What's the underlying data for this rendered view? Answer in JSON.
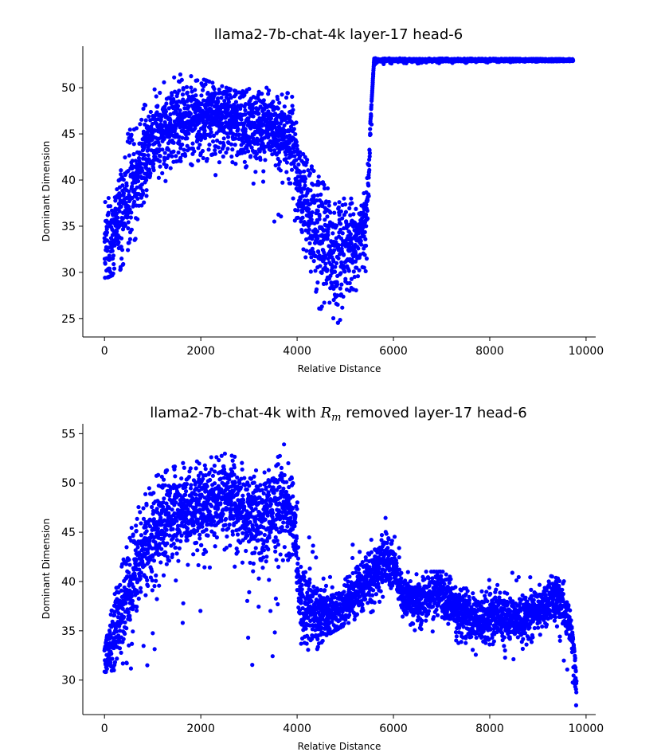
{
  "colors": {
    "points": "#0000ff",
    "axis": "#000000"
  },
  "chart_data": [
    {
      "type": "scatter",
      "title": "llama2-7b-chat-4k layer-17 head-6",
      "title_parts": [
        "llama2-7b-chat-4k layer-17 head-6"
      ],
      "xlabel": "Relative Distance",
      "ylabel": "Dominant Dimension",
      "xlim": [
        -450,
        10200
      ],
      "ylim": [
        23,
        54.5
      ],
      "xticks": [
        0,
        2000,
        4000,
        6000,
        8000,
        10000
      ],
      "yticks": [
        25,
        30,
        35,
        40,
        45,
        50
      ],
      "xmax_point": 9730,
      "profile": [
        [
          0,
          33
        ],
        [
          100,
          32.5
        ],
        [
          250,
          35
        ],
        [
          400,
          37
        ],
        [
          600,
          40
        ],
        [
          800,
          42
        ],
        [
          1000,
          44
        ],
        [
          1300,
          45.5
        ],
        [
          1600,
          46.5
        ],
        [
          2000,
          47
        ],
        [
          2400,
          47
        ],
        [
          2800,
          46.5
        ],
        [
          3200,
          45.5
        ],
        [
          3600,
          45.5
        ],
        [
          3900,
          44.5
        ],
        [
          4000,
          40
        ],
        [
          4200,
          37
        ],
        [
          4400,
          35
        ],
        [
          4600,
          33
        ],
        [
          4800,
          31
        ],
        [
          5000,
          33
        ],
        [
          5300,
          34
        ],
        [
          5450,
          36
        ],
        [
          5500,
          42
        ],
        [
          5550,
          50
        ],
        [
          5600,
          53
        ],
        [
          9730,
          53
        ]
      ],
      "noise": [
        [
          0,
          3
        ],
        [
          400,
          4
        ],
        [
          1000,
          3
        ],
        [
          2000,
          2.5
        ],
        [
          3200,
          2.5
        ],
        [
          3900,
          3
        ],
        [
          4300,
          4
        ],
        [
          4900,
          4
        ],
        [
          5450,
          2
        ],
        [
          5550,
          0.6
        ],
        [
          5650,
          0.1
        ],
        [
          9730,
          0.1
        ]
      ],
      "range": [
        [
          0,
          29.3,
          37.5
        ],
        [
          300,
          30,
          40
        ],
        [
          600,
          33,
          48
        ],
        [
          1000,
          39,
          50
        ],
        [
          1600,
          41,
          51.5
        ],
        [
          2000,
          39.5,
          51
        ],
        [
          2800,
          42,
          49.5
        ],
        [
          3500,
          35.3,
          50.8
        ],
        [
          3900,
          37,
          49
        ],
        [
          4100,
          31,
          43
        ],
        [
          4500,
          25.5,
          40
        ],
        [
          4800,
          24.2,
          38
        ],
        [
          5200,
          27,
          38
        ],
        [
          5450,
          30,
          40
        ],
        [
          5600,
          52.5,
          53.2
        ],
        [
          9730,
          52.9,
          53.1
        ]
      ]
    },
    {
      "type": "scatter",
      "title": "llama2-7b-chat-4k with R_m removed layer-17 head-6",
      "title_parts": [
        "llama2-7b-chat-4k with ",
        "R",
        "m",
        " removed layer-17 head-6"
      ],
      "xlabel": "Relative Distance",
      "ylabel": "Dominant Dimension",
      "xlim": [
        -450,
        10200
      ],
      "ylim": [
        26.5,
        56
      ],
      "xticks": [
        0,
        2000,
        4000,
        6000,
        8000,
        10000
      ],
      "yticks": [
        30,
        35,
        40,
        45,
        50,
        55
      ],
      "xmax_point": 9800,
      "profile": [
        [
          0,
          32
        ],
        [
          150,
          34
        ],
        [
          400,
          38
        ],
        [
          700,
          42
        ],
        [
          1000,
          45
        ],
        [
          1400,
          47
        ],
        [
          2000,
          47.5
        ],
        [
          2500,
          49
        ],
        [
          2900,
          47
        ],
        [
          3300,
          46
        ],
        [
          3700,
          48
        ],
        [
          3950,
          46
        ],
        [
          4050,
          38
        ],
        [
          4400,
          37
        ],
        [
          4800,
          36.5
        ],
        [
          5100,
          38.5
        ],
        [
          5500,
          40
        ],
        [
          5800,
          42
        ],
        [
          6000,
          41.5
        ],
        [
          6200,
          38.5
        ],
        [
          6600,
          38
        ],
        [
          6900,
          39
        ],
        [
          7200,
          37.5
        ],
        [
          7700,
          36
        ],
        [
          8200,
          36.5
        ],
        [
          8600,
          36
        ],
        [
          9000,
          37
        ],
        [
          9400,
          38.5
        ],
        [
          9650,
          36
        ],
        [
          9750,
          33
        ],
        [
          9800,
          29
        ]
      ],
      "noise": [
        [
          0,
          2
        ],
        [
          500,
          3.5
        ],
        [
          1500,
          3
        ],
        [
          2500,
          2.5
        ],
        [
          3500,
          3
        ],
        [
          3950,
          3
        ],
        [
          4100,
          2.5
        ],
        [
          4800,
          1.5
        ],
        [
          5800,
          1.8
        ],
        [
          6200,
          1.5
        ],
        [
          7000,
          1.5
        ],
        [
          8000,
          1.5
        ],
        [
          9000,
          1.5
        ],
        [
          9600,
          1.5
        ],
        [
          9800,
          1.5
        ]
      ],
      "range": [
        [
          0,
          30.8,
          33
        ],
        [
          200,
          31,
          38.5
        ],
        [
          800,
          30.7,
          50
        ],
        [
          1500,
          35,
          51.8
        ],
        [
          2500,
          38,
          53.5
        ],
        [
          3100,
          30.8,
          51
        ],
        [
          3700,
          33,
          54.5
        ],
        [
          4100,
          30.8,
          46
        ],
        [
          4600,
          34.5,
          44
        ],
        [
          5500,
          37,
          44
        ],
        [
          5900,
          34.5,
          47
        ],
        [
          6500,
          35,
          41
        ],
        [
          7500,
          32.8,
          41
        ],
        [
          8200,
          31.8,
          41
        ],
        [
          9000,
          32,
          41
        ],
        [
          9600,
          31,
          40
        ],
        [
          9800,
          26.8,
          31
        ]
      ]
    }
  ]
}
